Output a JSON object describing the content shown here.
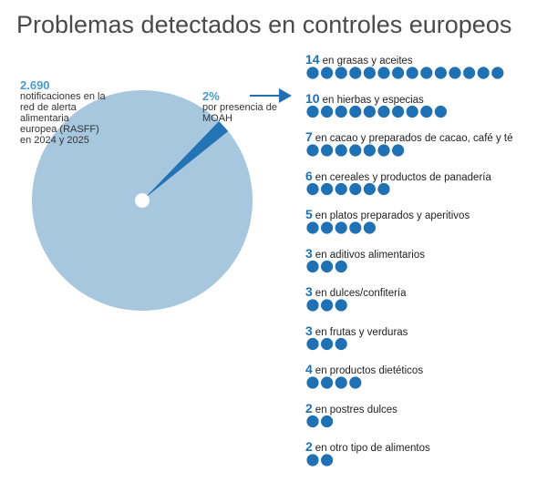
{
  "title": "Problemas detectados en controles europeos",
  "chart_data": [
    {
      "type": "pie",
      "total_label": "2.690",
      "total_text": "notificaciones en la red de alerta alimentaria europea (RASFF) en 2024 y 2025",
      "categories": [
        "por presencia de MOAH",
        null
      ],
      "values": [
        2,
        98
      ],
      "value_labels": [
        "2%",
        null
      ],
      "colors": [
        "#2474b5",
        "#a7c7de"
      ]
    },
    {
      "type": "dots",
      "color": "#2070b4",
      "categories": [
        "en grasas y aceites",
        "en hierbas y especias",
        "en cacao y preparados de cacao, café y té",
        "en cereales y productos de panadería",
        "en platos preparados y aperitivos",
        "en aditivos alimentarios",
        "en dulces/confitería",
        "en frutas y verduras",
        "en productos dietéticos",
        "en postres dulces",
        "en otro tipo de alimentos"
      ],
      "values": [
        14,
        10,
        7,
        6,
        5,
        3,
        3,
        3,
        4,
        2,
        2
      ]
    }
  ]
}
